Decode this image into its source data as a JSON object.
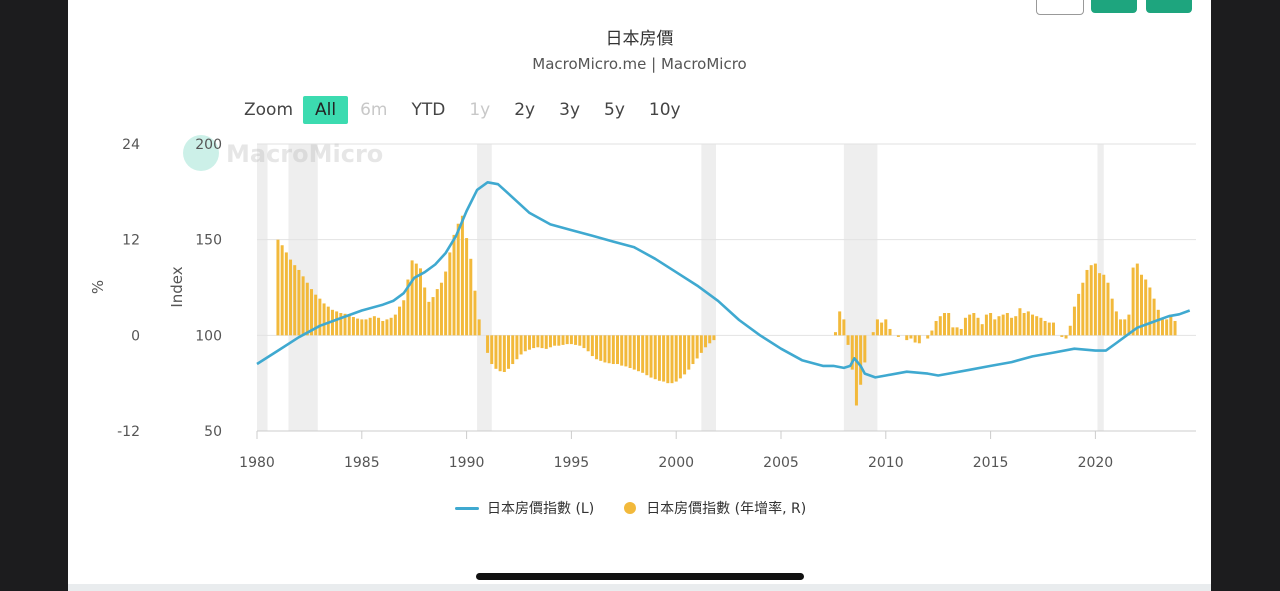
{
  "title": "日本房價",
  "subtitle": "MacroMicro.me | MacroMicro",
  "watermark": "MacroMicro",
  "zoom": {
    "label": "Zoom",
    "options": [
      {
        "label": "All",
        "state": "active"
      },
      {
        "label": "6m",
        "state": "disabled"
      },
      {
        "label": "YTD",
        "state": "normal"
      },
      {
        "label": "1y",
        "state": "disabled"
      },
      {
        "label": "2y",
        "state": "normal"
      },
      {
        "label": "3y",
        "state": "normal"
      },
      {
        "label": "5y",
        "state": "normal"
      },
      {
        "label": "10y",
        "state": "normal"
      }
    ]
  },
  "legend": {
    "line_label": "日本房價指數 (L)",
    "bar_label": "日本房價指數 (年增率, R)"
  },
  "colors": {
    "accent": "#3cdbb0",
    "line": "#3fa9d0",
    "bar": "#f2b93b",
    "recession_band": "#eeeeee"
  },
  "chart_data": {
    "type": "line+bar",
    "x_ticks": [
      1980,
      1985,
      1990,
      1995,
      2000,
      2005,
      2010,
      2015,
      2020
    ],
    "xlim": [
      1980,
      2024.8
    ],
    "left_axis": {
      "label": "Index",
      "ylim": [
        50,
        200
      ],
      "ticks": [
        50,
        100,
        150,
        200
      ]
    },
    "right_axis": {
      "label": "%",
      "ylim": [
        -12,
        24
      ],
      "ticks": [
        -12,
        0,
        12,
        24
      ]
    },
    "recessions": [
      [
        1980.0,
        1980.5
      ],
      [
        1981.5,
        1982.9
      ],
      [
        1990.5,
        1991.2
      ],
      [
        2001.2,
        2001.9
      ],
      [
        2008.0,
        2009.6
      ],
      [
        2020.1,
        2020.4
      ]
    ],
    "series": [
      {
        "name": "日本房價指數 (L)",
        "type": "line",
        "axis": "left",
        "points": [
          [
            1980.0,
            85
          ],
          [
            1981.0,
            92
          ],
          [
            1982.0,
            99
          ],
          [
            1983.0,
            105
          ],
          [
            1984.0,
            109
          ],
          [
            1985.0,
            113
          ],
          [
            1986.0,
            116
          ],
          [
            1986.5,
            118
          ],
          [
            1987.0,
            122
          ],
          [
            1987.5,
            130
          ],
          [
            1988.0,
            133
          ],
          [
            1988.5,
            137
          ],
          [
            1989.0,
            143
          ],
          [
            1989.5,
            152
          ],
          [
            1990.0,
            165
          ],
          [
            1990.5,
            176
          ],
          [
            1991.0,
            180
          ],
          [
            1991.5,
            179
          ],
          [
            1992.0,
            174
          ],
          [
            1993.0,
            164
          ],
          [
            1994.0,
            158
          ],
          [
            1995.0,
            155
          ],
          [
            1996.0,
            152
          ],
          [
            1997.0,
            149
          ],
          [
            1998.0,
            146
          ],
          [
            1999.0,
            140
          ],
          [
            2000.0,
            133
          ],
          [
            2001.0,
            126
          ],
          [
            2002.0,
            118
          ],
          [
            2003.0,
            108
          ],
          [
            2004.0,
            100
          ],
          [
            2005.0,
            93
          ],
          [
            2006.0,
            87
          ],
          [
            2007.0,
            84
          ],
          [
            2007.5,
            84
          ],
          [
            2008.0,
            83
          ],
          [
            2008.3,
            84
          ],
          [
            2008.5,
            88
          ],
          [
            2008.8,
            84
          ],
          [
            2009.0,
            80
          ],
          [
            2009.5,
            78
          ],
          [
            2010.0,
            79
          ],
          [
            2011.0,
            81
          ],
          [
            2012.0,
            80
          ],
          [
            2012.5,
            79
          ],
          [
            2013.0,
            80
          ],
          [
            2014.0,
            82
          ],
          [
            2015.0,
            84
          ],
          [
            2016.0,
            86
          ],
          [
            2017.0,
            89
          ],
          [
            2018.0,
            91
          ],
          [
            2019.0,
            93
          ],
          [
            2020.0,
            92
          ],
          [
            2020.5,
            92
          ],
          [
            2021.0,
            96
          ],
          [
            2021.5,
            100
          ],
          [
            2022.0,
            104
          ],
          [
            2022.5,
            106
          ],
          [
            2023.0,
            108
          ],
          [
            2023.5,
            110
          ],
          [
            2024.0,
            111
          ],
          [
            2024.5,
            113
          ]
        ]
      },
      {
        "name": "日本房價指數 (年增率, R)",
        "type": "bar",
        "axis": "right",
        "points": [
          [
            1981.0,
            12.0
          ],
          [
            1981.2,
            11.3
          ],
          [
            1981.4,
            10.4
          ],
          [
            1981.6,
            9.5
          ],
          [
            1981.8,
            8.8
          ],
          [
            1982.0,
            8.2
          ],
          [
            1982.2,
            7.4
          ],
          [
            1982.4,
            6.6
          ],
          [
            1982.6,
            5.8
          ],
          [
            1982.8,
            5.1
          ],
          [
            1983.0,
            4.6
          ],
          [
            1983.2,
            4.0
          ],
          [
            1983.4,
            3.6
          ],
          [
            1983.6,
            3.2
          ],
          [
            1983.8,
            3.0
          ],
          [
            1984.0,
            2.8
          ],
          [
            1984.2,
            2.7
          ],
          [
            1984.4,
            2.5
          ],
          [
            1984.6,
            2.3
          ],
          [
            1984.8,
            2.1
          ],
          [
            1985.0,
            2.0
          ],
          [
            1985.2,
            2.0
          ],
          [
            1985.4,
            2.2
          ],
          [
            1985.6,
            2.4
          ],
          [
            1985.8,
            2.2
          ],
          [
            1986.0,
            1.8
          ],
          [
            1986.2,
            2.0
          ],
          [
            1986.4,
            2.2
          ],
          [
            1986.6,
            2.6
          ],
          [
            1986.8,
            3.6
          ],
          [
            1987.0,
            4.4
          ],
          [
            1987.2,
            7.0
          ],
          [
            1987.4,
            9.4
          ],
          [
            1987.6,
            9.0
          ],
          [
            1987.8,
            8.4
          ],
          [
            1988.0,
            6.0
          ],
          [
            1988.2,
            4.2
          ],
          [
            1988.4,
            4.8
          ],
          [
            1988.6,
            5.8
          ],
          [
            1988.8,
            6.6
          ],
          [
            1989.0,
            8.0
          ],
          [
            1989.2,
            10.4
          ],
          [
            1989.4,
            12.6
          ],
          [
            1989.6,
            14.0
          ],
          [
            1989.8,
            15.0
          ],
          [
            1990.0,
            12.2
          ],
          [
            1990.2,
            9.6
          ],
          [
            1990.4,
            5.6
          ],
          [
            1990.6,
            2.0
          ],
          [
            1991.0,
            -2.2
          ],
          [
            1991.2,
            -3.6
          ],
          [
            1991.4,
            -4.2
          ],
          [
            1991.6,
            -4.5
          ],
          [
            1991.8,
            -4.6
          ],
          [
            1992.0,
            -4.2
          ],
          [
            1992.2,
            -3.6
          ],
          [
            1992.4,
            -3.0
          ],
          [
            1992.6,
            -2.4
          ],
          [
            1992.8,
            -2.0
          ],
          [
            1993.0,
            -1.8
          ],
          [
            1993.2,
            -1.6
          ],
          [
            1993.4,
            -1.5
          ],
          [
            1993.6,
            -1.6
          ],
          [
            1993.8,
            -1.7
          ],
          [
            1994.0,
            -1.5
          ],
          [
            1994.2,
            -1.3
          ],
          [
            1994.4,
            -1.3
          ],
          [
            1994.6,
            -1.2
          ],
          [
            1994.8,
            -1.1
          ],
          [
            1995.0,
            -1.1
          ],
          [
            1995.2,
            -1.2
          ],
          [
            1995.4,
            -1.3
          ],
          [
            1995.6,
            -1.6
          ],
          [
            1995.8,
            -2.0
          ],
          [
            1996.0,
            -2.6
          ],
          [
            1996.2,
            -3.0
          ],
          [
            1996.4,
            -3.2
          ],
          [
            1996.6,
            -3.4
          ],
          [
            1996.8,
            -3.5
          ],
          [
            1997.0,
            -3.6
          ],
          [
            1997.2,
            -3.6
          ],
          [
            1997.4,
            -3.8
          ],
          [
            1997.6,
            -3.9
          ],
          [
            1997.8,
            -4.1
          ],
          [
            1998.0,
            -4.3
          ],
          [
            1998.2,
            -4.5
          ],
          [
            1998.4,
            -4.7
          ],
          [
            1998.6,
            -5.0
          ],
          [
            1998.8,
            -5.3
          ],
          [
            1999.0,
            -5.5
          ],
          [
            1999.2,
            -5.7
          ],
          [
            1999.4,
            -5.8
          ],
          [
            1999.6,
            -6.0
          ],
          [
            1999.8,
            -6.0
          ],
          [
            2000.0,
            -5.8
          ],
          [
            2000.2,
            -5.4
          ],
          [
            2000.4,
            -4.9
          ],
          [
            2000.6,
            -4.3
          ],
          [
            2000.8,
            -3.6
          ],
          [
            2001.0,
            -2.9
          ],
          [
            2001.2,
            -2.2
          ],
          [
            2001.4,
            -1.5
          ],
          [
            2001.6,
            -1.0
          ],
          [
            2001.8,
            -0.6
          ],
          [
            2007.6,
            0.4
          ],
          [
            2007.8,
            3.0
          ],
          [
            2008.0,
            2.0
          ],
          [
            2008.2,
            -1.2
          ],
          [
            2008.4,
            -4.3
          ],
          [
            2008.6,
            -8.8
          ],
          [
            2008.8,
            -6.2
          ],
          [
            2009.0,
            -3.4
          ],
          [
            2009.4,
            0.4
          ],
          [
            2009.6,
            2.0
          ],
          [
            2009.8,
            1.6
          ],
          [
            2010.0,
            2.0
          ],
          [
            2010.2,
            0.8
          ],
          [
            2010.6,
            -0.2
          ],
          [
            2011.0,
            -0.6
          ],
          [
            2011.2,
            -0.4
          ],
          [
            2011.4,
            -0.9
          ],
          [
            2011.6,
            -1.0
          ],
          [
            2012.0,
            -0.4
          ],
          [
            2012.2,
            0.6
          ],
          [
            2012.4,
            1.8
          ],
          [
            2012.6,
            2.4
          ],
          [
            2012.8,
            2.8
          ],
          [
            2013.0,
            2.8
          ],
          [
            2013.2,
            1.0
          ],
          [
            2013.4,
            1.0
          ],
          [
            2013.6,
            0.8
          ],
          [
            2013.8,
            2.2
          ],
          [
            2014.0,
            2.6
          ],
          [
            2014.2,
            2.8
          ],
          [
            2014.4,
            2.2
          ],
          [
            2014.6,
            1.4
          ],
          [
            2014.8,
            2.6
          ],
          [
            2015.0,
            2.8
          ],
          [
            2015.2,
            2.0
          ],
          [
            2015.4,
            2.4
          ],
          [
            2015.6,
            2.6
          ],
          [
            2015.8,
            2.8
          ],
          [
            2016.0,
            2.2
          ],
          [
            2016.2,
            2.4
          ],
          [
            2016.4,
            3.4
          ],
          [
            2016.6,
            2.8
          ],
          [
            2016.8,
            3.0
          ],
          [
            2017.0,
            2.6
          ],
          [
            2017.2,
            2.4
          ],
          [
            2017.4,
            2.2
          ],
          [
            2017.6,
            1.8
          ],
          [
            2017.8,
            1.6
          ],
          [
            2018.0,
            1.6
          ],
          [
            2018.4,
            -0.2
          ],
          [
            2018.6,
            -0.4
          ],
          [
            2018.8,
            1.2
          ],
          [
            2019.0,
            3.6
          ],
          [
            2019.2,
            5.2
          ],
          [
            2019.4,
            6.6
          ],
          [
            2019.6,
            8.2
          ],
          [
            2019.8,
            8.8
          ],
          [
            2020.0,
            9.0
          ],
          [
            2020.2,
            7.8
          ],
          [
            2020.4,
            7.6
          ],
          [
            2020.6,
            6.6
          ],
          [
            2020.8,
            4.6
          ],
          [
            2021.0,
            3.0
          ],
          [
            2021.2,
            2.0
          ],
          [
            2021.4,
            2.0
          ],
          [
            2021.6,
            2.6
          ],
          [
            2021.8,
            8.5
          ],
          [
            2022.0,
            9.0
          ],
          [
            2022.2,
            7.6
          ],
          [
            2022.4,
            7.0
          ],
          [
            2022.6,
            6.0
          ],
          [
            2022.8,
            4.6
          ],
          [
            2023.0,
            3.2
          ],
          [
            2023.2,
            2.0
          ],
          [
            2023.4,
            2.0
          ],
          [
            2023.6,
            2.6
          ],
          [
            2023.8,
            1.8
          ]
        ]
      }
    ]
  }
}
